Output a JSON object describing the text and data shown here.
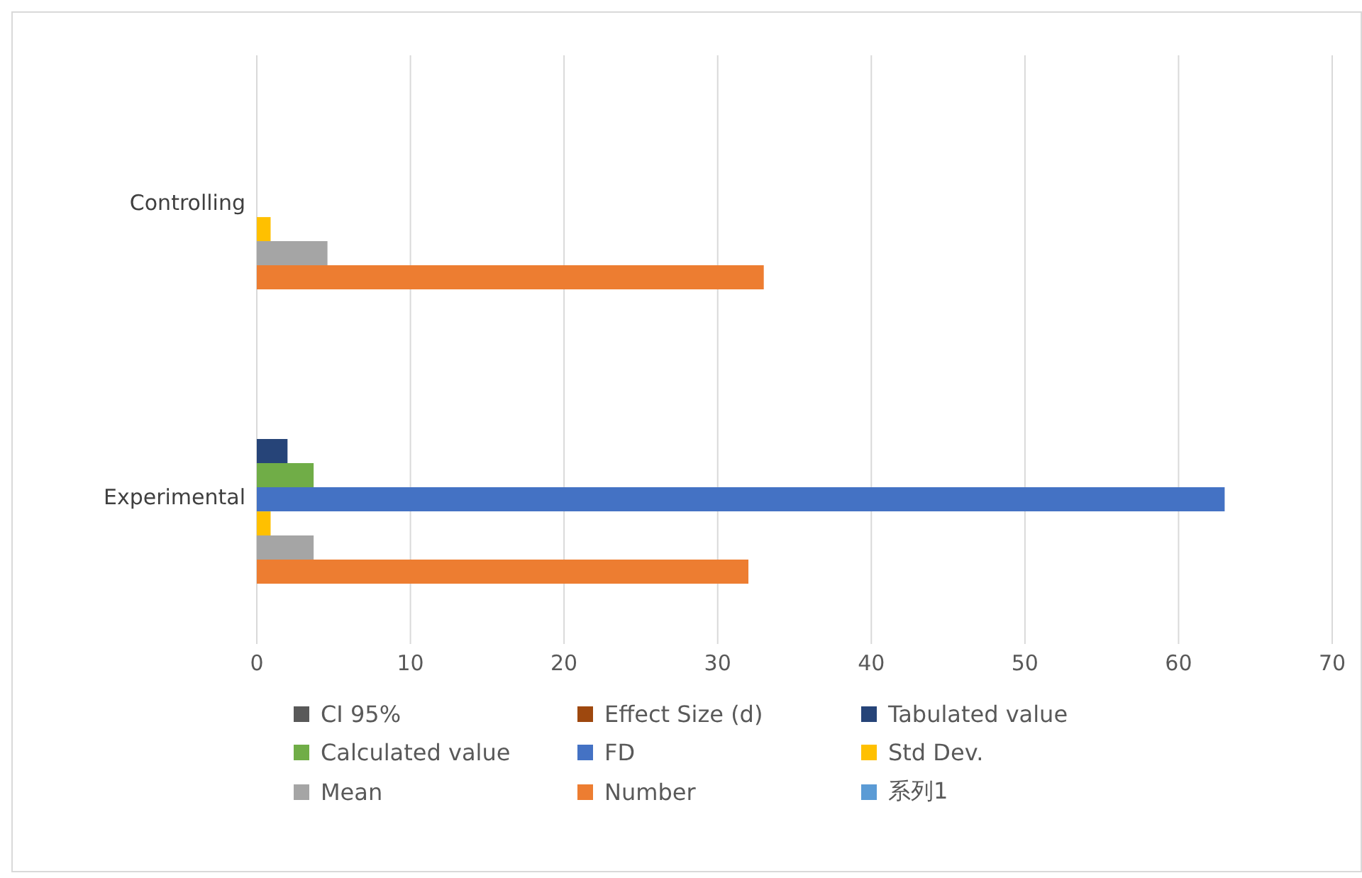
{
  "chart_data": {
    "type": "bar",
    "orientation": "horizontal",
    "categories": [
      "Controlling",
      "Experimental"
    ],
    "series": [
      {
        "name": "CI  95%",
        "color": "#595959",
        "values": [
          null,
          null
        ]
      },
      {
        "name": "Effect Size (d)",
        "color": "#9e480e",
        "values": [
          null,
          null
        ]
      },
      {
        "name": "Tabulated value",
        "color": "#264478",
        "values": [
          null,
          2.0
        ]
      },
      {
        "name": "Calculated value",
        "color": "#70ad47",
        "values": [
          null,
          3.7
        ]
      },
      {
        "name": "FD",
        "color": "#4472c4",
        "values": [
          null,
          63
        ]
      },
      {
        "name": "Std Dev.",
        "color": "#ffc000",
        "values": [
          0.9,
          0.9
        ]
      },
      {
        "name": "Mean",
        "color": "#a5a5a5",
        "values": [
          4.6,
          3.7
        ]
      },
      {
        "name": "Number",
        "color": "#ed7d31",
        "values": [
          33,
          32
        ]
      },
      {
        "name": "系列1",
        "color": "#5b9bd5",
        "values": [
          null,
          null
        ]
      }
    ],
    "xlim": [
      0,
      70
    ],
    "xticks": [
      0,
      10,
      20,
      30,
      40,
      50,
      60,
      70
    ],
    "grid": "x",
    "legend": "bottom"
  }
}
